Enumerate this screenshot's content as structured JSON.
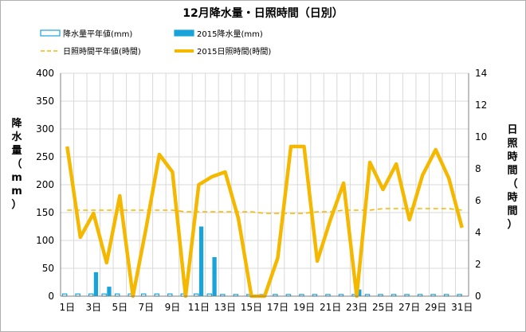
{
  "chart_data": {
    "type": "bar+line",
    "title": "12月降水量・日照時間（日別）",
    "categories": [
      "1日",
      "2日",
      "3日",
      "4日",
      "5日",
      "6日",
      "7日",
      "8日",
      "9日",
      "10日",
      "11日",
      "12日",
      "13日",
      "14日",
      "15日",
      "16日",
      "17日",
      "18日",
      "19日",
      "20日",
      "21日",
      "22日",
      "23日",
      "24日",
      "25日",
      "26日",
      "27日",
      "28日",
      "29日",
      "30日",
      "31日"
    ],
    "x_tick_labels": [
      "1日",
      "3日",
      "5日",
      "7日",
      "9日",
      "11日",
      "13日",
      "15日",
      "17日",
      "19日",
      "21日",
      "23日",
      "25日",
      "27日",
      "29日",
      "31日"
    ],
    "y_left": {
      "label": "降水量（mm）",
      "range": [
        0,
        400
      ],
      "ticks": [
        0,
        50,
        100,
        150,
        200,
        250,
        300,
        350,
        400
      ]
    },
    "y_right": {
      "label": "日照時間（時間）",
      "range": [
        0,
        14
      ],
      "ticks": [
        0,
        2,
        4,
        6,
        8,
        10,
        12,
        14
      ]
    },
    "grid": true,
    "legend_position": "top",
    "series": [
      {
        "name": "降水量平年値(mm)",
        "kind": "bar",
        "style": "outline",
        "axis": "left",
        "color": "#1aa3d9",
        "values": [
          4,
          4,
          4,
          4,
          4,
          4,
          4,
          4,
          4,
          4,
          4,
          4,
          3,
          3,
          3,
          3,
          3,
          3,
          3,
          3,
          3,
          3,
          3,
          3,
          3,
          3,
          3,
          3,
          3,
          3,
          3
        ]
      },
      {
        "name": "2015降水量(mm)",
        "kind": "bar",
        "style": "filled",
        "axis": "left",
        "color": "#1aa3d9",
        "values": [
          0,
          0,
          43,
          17,
          0,
          0,
          0,
          0,
          0,
          0,
          125,
          70,
          0,
          0,
          0,
          0,
          0,
          0,
          0,
          0,
          0,
          0,
          12,
          0,
          0,
          0,
          0,
          0,
          0,
          0,
          0
        ]
      },
      {
        "name": "日照時間平年値(時間)",
        "kind": "line",
        "style": "dashed",
        "axis": "right",
        "color": "#f5b800",
        "values": [
          5.4,
          5.4,
          5.4,
          5.4,
          5.4,
          5.4,
          5.4,
          5.4,
          5.4,
          5.3,
          5.3,
          5.3,
          5.3,
          5.3,
          5.3,
          5.2,
          5.2,
          5.2,
          5.2,
          5.3,
          5.3,
          5.4,
          5.4,
          5.4,
          5.5,
          5.5,
          5.5,
          5.5,
          5.5,
          5.5,
          5.4
        ]
      },
      {
        "name": "2015日照時間(時間)",
        "kind": "line",
        "style": "solid",
        "axis": "right",
        "color": "#f5b800",
        "values": [
          9.4,
          3.7,
          5.2,
          2.1,
          6.3,
          0,
          4.3,
          8.9,
          7.8,
          0,
          7.0,
          7.5,
          7.8,
          4.9,
          0,
          0,
          2.4,
          9.4,
          9.4,
          2.2,
          4.8,
          7.1,
          0,
          8.4,
          6.7,
          8.3,
          4.8,
          7.6,
          9.2,
          7.4,
          4.3
        ]
      }
    ]
  }
}
